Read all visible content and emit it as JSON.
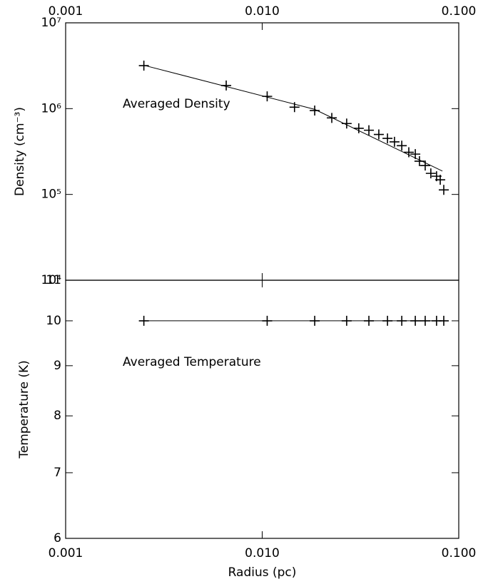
{
  "chart_data": [
    {
      "type": "scatter",
      "log_x": true,
      "log_y": true,
      "xaxis_side": "top",
      "ylabel": "Density (cm⁻³)",
      "annotation": "Averaged Density",
      "xlim": [
        0.001,
        0.1
      ],
      "xticks": [
        0.001,
        {
          "value": 0.01,
          "label": "0.010"
        },
        {
          "value": 0.1,
          "label": "0.100"
        }
      ],
      "ylim": [
        10000,
        10000000
      ],
      "yticks": [
        {
          "value": 10000,
          "label": "10⁴"
        },
        {
          "value": 100000,
          "label": "10⁵"
        },
        {
          "value": 1000000,
          "label": "10⁶"
        },
        {
          "value": 10000000,
          "label": "10⁷"
        }
      ],
      "series": [
        {
          "mode": "markers",
          "color": "#000000",
          "x": [
            0.0025,
            0.00656,
            0.0106,
            0.0146,
            0.0185,
            0.0226,
            0.0269,
            0.031,
            0.0349,
            0.0392,
            0.0434,
            0.0471,
            0.0513,
            0.0557,
            0.0601,
            0.0631,
            0.0675,
            0.0721,
            0.0771,
            0.0805,
            0.0839
          ],
          "values": [
            3170000,
            1860000,
            1390000,
            1040000,
            950000,
            780000,
            670000,
            590000,
            560000,
            500000,
            450000,
            410000,
            370000,
            310000,
            295000,
            244000,
            217000,
            176000,
            163000,
            148000,
            113000
          ]
        },
        {
          "mode": "line",
          "color": "#000000",
          "x": [
            0.0025,
            0.0185,
            0.0826
          ],
          "values": [
            3200000,
            980000,
            187000
          ]
        }
      ]
    },
    {
      "type": "scatter",
      "log_x": true,
      "log_y": true,
      "xaxis_side": "bottom",
      "ylabel": "Temperature (K)",
      "xlabel": "Radius (pc)",
      "annotation": "Averaged Temperature",
      "xlim": [
        0.001,
        0.1
      ],
      "xticks": [
        0.001,
        {
          "value": 0.01,
          "label": "0.010"
        },
        {
          "value": 0.1,
          "label": "0.100"
        }
      ],
      "ylim": [
        6,
        11
      ],
      "yticks": [
        6,
        7,
        8,
        9,
        10,
        11
      ],
      "series": [
        {
          "mode": "markers",
          "color": "#000000",
          "x": [
            0.0025,
            0.0106,
            0.0185,
            0.0269,
            0.0349,
            0.0434,
            0.0513,
            0.0601,
            0.0675,
            0.0771,
            0.0839
          ],
          "values": [
            10,
            10,
            10,
            10,
            10,
            10,
            10,
            10,
            10,
            10,
            10
          ]
        },
        {
          "mode": "line",
          "color": "#000000",
          "x": [
            0.0025,
            0.0839
          ],
          "values": [
            10,
            10
          ]
        }
      ]
    }
  ]
}
